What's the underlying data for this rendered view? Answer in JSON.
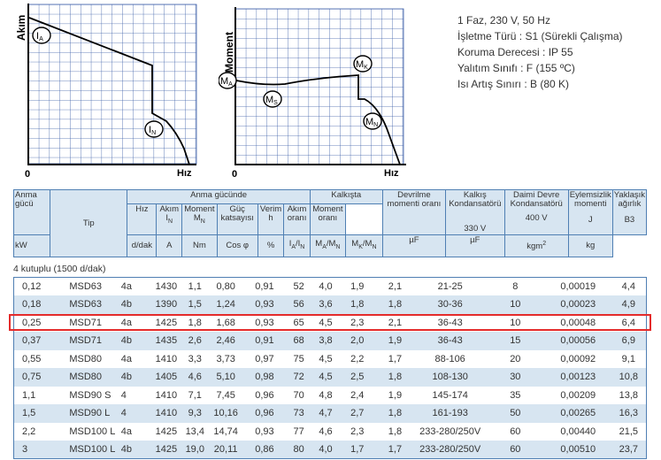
{
  "chart_left": {
    "ylabel": "Akım",
    "xlabel": "Hız",
    "origin": "0",
    "marker_start": "I",
    "marker_start_sub": "A",
    "marker_nom": "I",
    "marker_nom_sub": "N"
  },
  "chart_right": {
    "ylabel": "Moment",
    "xlabel": "Hız",
    "origin": "0",
    "markers": [
      {
        "l": "M",
        "s": "A"
      },
      {
        "l": "M",
        "s": "S"
      },
      {
        "l": "M",
        "s": "K"
      },
      {
        "l": "M",
        "s": "N"
      }
    ]
  },
  "specs": [
    "1 Faz, 230 V, 50 Hz",
    "İşletme Türü : S1 (Sürekli Çalışma)",
    "Koruma Derecesi : IP 55",
    "Yalıtım Sınıfı : F (155 ºC)",
    "Isı Artış Sınırı : B (80 K)"
  ],
  "header": {
    "anma_gucu": "Anma gücü",
    "tip": "Tip",
    "anma_gucunde": "Anma gücünde",
    "kalkista": "Kalkışta",
    "devrilme": "Devrilme momenti oranı",
    "kalkis_kond": "Kalkış Kondansatörü",
    "daimi_kond": "Daimi Devre Kondansatörü",
    "eylemsizlik": "Eylemsizlik momenti",
    "yaklasik": "Yaklaşık ağırlık",
    "hiz": "Hız",
    "akim": "Akım",
    "akim_sub": "I",
    "akim_subsub": "N",
    "moment": "Moment",
    "moment_sub": "M",
    "moment_subsub": "N",
    "guc_katsayisi": "Güç katsayısı",
    "verim": "Verim",
    "verim_h": "h",
    "akim_orani": "Akım oranı",
    "moment_orani": "Moment oranı",
    "j": "J",
    "b3": "B3",
    "v330": "330 V",
    "v400": "400 V",
    "uf1": "µF",
    "uf2": "µF",
    "u_kw": "kW",
    "u_ddak": "d/dak",
    "u_a": "A",
    "u_nm": "Nm",
    "u_cos": "Cos φ",
    "u_pct": "%",
    "u_ia": "I",
    "u_ma": "M",
    "u_mk": "M",
    "u_kgm": "kgm",
    "u_kg": "kg"
  },
  "group_label": "4 kutuplu (1500 d/dak)",
  "rows": [
    [
      "0,12",
      "MSD",
      "63",
      "4a",
      "1430",
      "1,1",
      "0,80",
      "0,91",
      "52",
      "4,0",
      "1,9",
      "2,1",
      "21-25",
      "8",
      "0,00019",
      "4,4"
    ],
    [
      "0,18",
      "MSD",
      "63",
      "4b",
      "1390",
      "1,5",
      "1,24",
      "0,93",
      "56",
      "3,6",
      "1,8",
      "1,8",
      "30-36",
      "10",
      "0,00023",
      "4,9"
    ],
    [
      "0,25",
      "MSD",
      "71",
      "4a",
      "1425",
      "1,8",
      "1,68",
      "0,93",
      "65",
      "4,5",
      "2,3",
      "2,1",
      "36-43",
      "10",
      "0,00048",
      "6,4"
    ],
    [
      "0,37",
      "MSD",
      "71",
      "4b",
      "1435",
      "2,6",
      "2,46",
      "0,91",
      "68",
      "3,8",
      "2,0",
      "1,9",
      "36-43",
      "15",
      "0,00056",
      "6,9"
    ],
    [
      "0,55",
      "MSD",
      "80",
      "4a",
      "1410",
      "3,3",
      "3,73",
      "0,97",
      "75",
      "4,5",
      "2,2",
      "1,7",
      "88-106",
      "20",
      "0,00092",
      "9,1"
    ],
    [
      "0,75",
      "MSD",
      "80",
      "4b",
      "1405",
      "4,6",
      "5,10",
      "0,98",
      "72",
      "4,5",
      "2,5",
      "1,8",
      "108-130",
      "30",
      "0,00123",
      "10,8"
    ],
    [
      "1,1",
      "MSD",
      "90 S",
      "4",
      "1410",
      "7,1",
      "7,45",
      "0,96",
      "70",
      "4,8",
      "2,4",
      "1,9",
      "145-174",
      "35",
      "0,00209",
      "13,8"
    ],
    [
      "1,5",
      "MSD",
      "90 L",
      "4",
      "1410",
      "9,3",
      "10,16",
      "0,96",
      "73",
      "4,7",
      "2,7",
      "1,8",
      "161-193",
      "50",
      "0,00265",
      "16,3"
    ],
    [
      "2,2",
      "MSD",
      "100 L",
      "4a",
      "1425",
      "13,4",
      "14,74",
      "0,93",
      "77",
      "4,6",
      "2,3",
      "1,8",
      "233-280/250V",
      "60",
      "0,00440",
      "21,5"
    ],
    [
      "3",
      "MSD",
      "100 L",
      "4b",
      "1425",
      "19,0",
      "20,11",
      "0,86",
      "80",
      "4,0",
      "1,7",
      "1,7",
      "233-280/250V",
      "60",
      "0,00510",
      "23,7"
    ]
  ]
}
